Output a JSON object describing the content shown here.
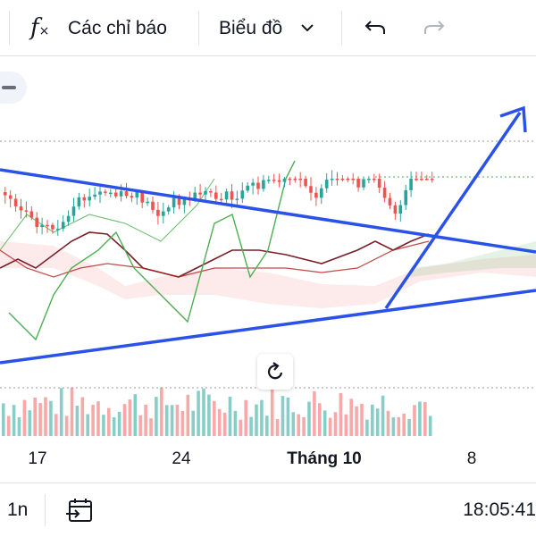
{
  "toolbar": {
    "fx_icon": "function-fx-icon",
    "indicators_label": "Các chỉ báo",
    "chart_menu_label": "Biểu đồ",
    "undo_icon": "undo-icon",
    "redo_icon": "redo-icon"
  },
  "chart": {
    "x_labels": [
      "17",
      "24",
      "Tháng 10",
      "8"
    ],
    "reset_icon": "reset-rotate-icon"
  },
  "colors": {
    "up": "#26a69a",
    "down": "#ef5350",
    "trendline": "#2a52e8",
    "conversion_line": "#7a1f2a",
    "lagging_span": "#4caf50"
  },
  "bottom_bar": {
    "interval": "1n",
    "date_range_icon": "calendar-range-icon",
    "clock": "18:05:41"
  }
}
